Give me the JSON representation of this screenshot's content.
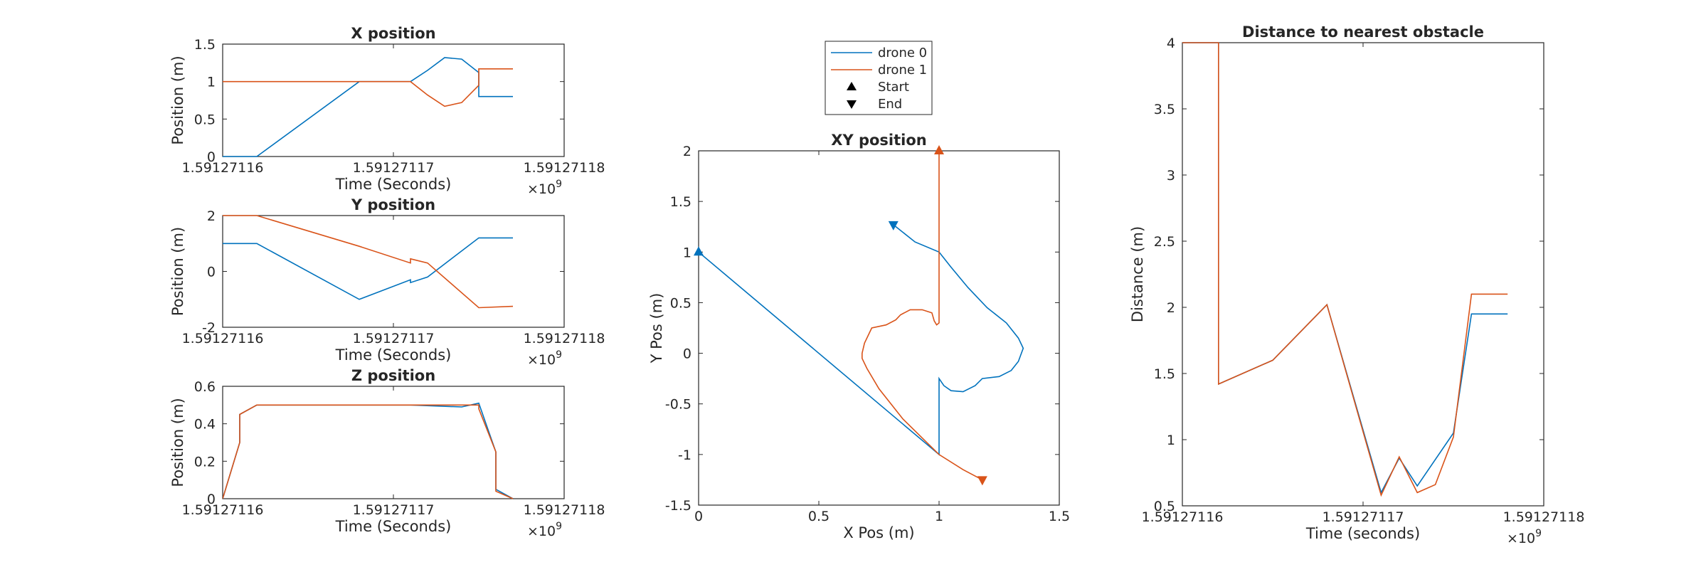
{
  "colors": {
    "drone0": "#0072BD",
    "drone1": "#D95319",
    "axis": "#262626"
  },
  "chart_data": [
    {
      "id": "x_position",
      "type": "line",
      "title": "X position",
      "xlabel": "Time (Seconds)",
      "ylabel": "Position (m)",
      "x_exponent_label": "×10",
      "x_exponent_power": "9",
      "xlim": [
        1.59127116,
        1.59127118
      ],
      "ylim": [
        0,
        1.5
      ],
      "xticks": [
        "1.59127116",
        "1.59127117",
        "1.59127118"
      ],
      "yticks": [
        "0",
        "0.5",
        "1",
        "1.5"
      ],
      "grid": false,
      "series": [
        {
          "name": "drone 0",
          "color": "#0072BD",
          "points": [
            [
              1.59127116,
              0
            ],
            [
              1.591271162,
              0
            ],
            [
              1.591271168,
              1
            ],
            [
              1.591271171,
              1
            ],
            [
              1.591271172,
              1.15
            ],
            [
              1.591271173,
              1.32
            ],
            [
              1.591271174,
              1.3
            ],
            [
              1.591271175,
              1.12
            ],
            [
              1.591271175,
              0.8
            ],
            [
              1.591271177,
              0.8
            ]
          ]
        },
        {
          "name": "drone 1",
          "color": "#D95319",
          "points": [
            [
              1.59127116,
              1
            ],
            [
              1.591271171,
              1
            ],
            [
              1.591271172,
              0.82
            ],
            [
              1.591271173,
              0.67
            ],
            [
              1.591271174,
              0.72
            ],
            [
              1.591271175,
              0.95
            ],
            [
              1.591271175,
              1.17
            ],
            [
              1.591271177,
              1.17
            ]
          ]
        }
      ]
    },
    {
      "id": "y_position",
      "type": "line",
      "title": "Y position",
      "xlabel": "Time (Seconds)",
      "ylabel": "Position (m)",
      "x_exponent_label": "×10",
      "x_exponent_power": "9",
      "xlim": [
        1.59127116,
        1.59127118
      ],
      "ylim": [
        -2,
        2
      ],
      "xticks": [
        "1.59127116",
        "1.59127117",
        "1.59127118"
      ],
      "yticks": [
        "-2",
        "0",
        "2"
      ],
      "grid": false,
      "series": [
        {
          "name": "drone 0",
          "color": "#0072BD",
          "points": [
            [
              1.59127116,
              1
            ],
            [
              1.591271162,
              1
            ],
            [
              1.591271168,
              -1
            ],
            [
              1.591271171,
              -0.3
            ],
            [
              1.591271171,
              -0.4
            ],
            [
              1.591271172,
              -0.2
            ],
            [
              1.591271175,
              1.2
            ],
            [
              1.591271177,
              1.2
            ]
          ]
        },
        {
          "name": "drone 1",
          "color": "#D95319",
          "points": [
            [
              1.59127116,
              2
            ],
            [
              1.591271162,
              2
            ],
            [
              1.591271168,
              0.9
            ],
            [
              1.591271171,
              0.3
            ],
            [
              1.591271171,
              0.45
            ],
            [
              1.591271172,
              0.3
            ],
            [
              1.591271175,
              -1.3
            ],
            [
              1.591271177,
              -1.25
            ]
          ]
        }
      ]
    },
    {
      "id": "z_position",
      "type": "line",
      "title": "Z position",
      "xlabel": "Time (Seconds)",
      "ylabel": "Position (m)",
      "x_exponent_label": "×10",
      "x_exponent_power": "9",
      "xlim": [
        1.59127116,
        1.59127118
      ],
      "ylim": [
        0,
        0.6
      ],
      "xticks": [
        "1.59127116",
        "1.59127117",
        "1.59127118"
      ],
      "yticks": [
        "0",
        "0.2",
        "0.4",
        "0.6"
      ],
      "grid": false,
      "series": [
        {
          "name": "drone 0",
          "color": "#0072BD",
          "points": [
            [
              1.59127116,
              0
            ],
            [
              1.591271161,
              0.3
            ],
            [
              1.591271161,
              0.45
            ],
            [
              1.591271162,
              0.5
            ],
            [
              1.591271171,
              0.5
            ],
            [
              1.591271174,
              0.49
            ],
            [
              1.591271175,
              0.51
            ],
            [
              1.591271176,
              0.25
            ],
            [
              1.591271176,
              0.05
            ],
            [
              1.591271177,
              0
            ]
          ]
        },
        {
          "name": "drone 1",
          "color": "#D95319",
          "points": [
            [
              1.59127116,
              0
            ],
            [
              1.591271161,
              0.3
            ],
            [
              1.591271161,
              0.45
            ],
            [
              1.591271162,
              0.5
            ],
            [
              1.591271175,
              0.5
            ],
            [
              1.591271175,
              0.48
            ],
            [
              1.591271176,
              0.25
            ],
            [
              1.591271176,
              0.04
            ],
            [
              1.591271177,
              0
            ]
          ]
        }
      ]
    },
    {
      "id": "xy_position",
      "type": "line",
      "title": "XY position",
      "xlabel": "X Pos (m)",
      "ylabel": "Y Pos (m)",
      "xlim": [
        0,
        1.5
      ],
      "ylim": [
        -1.5,
        2
      ],
      "xticks": [
        "0",
        "0.5",
        "1",
        "1.5"
      ],
      "yticks": [
        "-1.5",
        "-1",
        "-0.5",
        "0",
        "0.5",
        "1",
        "1.5",
        "2"
      ],
      "grid": false,
      "legend": {
        "placement": "top-center, outside",
        "entries": [
          {
            "label": "drone 0",
            "kind": "line",
            "color": "#0072BD"
          },
          {
            "label": "drone 1",
            "kind": "line",
            "color": "#D95319"
          },
          {
            "label": "Start",
            "kind": "marker-up",
            "color": "#000000"
          },
          {
            "label": "End",
            "kind": "marker-down",
            "color": "#000000"
          }
        ]
      },
      "series": [
        {
          "name": "drone 0",
          "color": "#0072BD",
          "start": [
            0,
            1
          ],
          "end": [
            0.81,
            1.27
          ],
          "points": [
            [
              0,
              1
            ],
            [
              1,
              -1
            ],
            [
              1,
              -0.25
            ],
            [
              1.02,
              -0.32
            ],
            [
              1.05,
              -0.37
            ],
            [
              1.1,
              -0.38
            ],
            [
              1.15,
              -0.32
            ],
            [
              1.18,
              -0.25
            ],
            [
              1.25,
              -0.23
            ],
            [
              1.3,
              -0.17
            ],
            [
              1.33,
              -0.08
            ],
            [
              1.35,
              0.05
            ],
            [
              1.33,
              0.15
            ],
            [
              1.28,
              0.3
            ],
            [
              1.2,
              0.45
            ],
            [
              1.12,
              0.65
            ],
            [
              1.05,
              0.85
            ],
            [
              1,
              1
            ],
            [
              0.9,
              1.1
            ],
            [
              0.81,
              1.27
            ]
          ]
        },
        {
          "name": "drone 1",
          "color": "#D95319",
          "start": [
            1,
            2
          ],
          "end": [
            1.18,
            -1.25
          ],
          "points": [
            [
              1,
              2
            ],
            [
              1,
              0.3
            ],
            [
              0.99,
              0.28
            ],
            [
              0.98,
              0.32
            ],
            [
              0.97,
              0.4
            ],
            [
              0.93,
              0.43
            ],
            [
              0.88,
              0.43
            ],
            [
              0.84,
              0.38
            ],
            [
              0.82,
              0.33
            ],
            [
              0.78,
              0.28
            ],
            [
              0.72,
              0.25
            ],
            [
              0.69,
              0.1
            ],
            [
              0.68,
              0
            ],
            [
              0.68,
              -0.05
            ],
            [
              0.7,
              -0.15
            ],
            [
              0.75,
              -0.35
            ],
            [
              0.85,
              -0.65
            ],
            [
              1,
              -1
            ],
            [
              1.1,
              -1.15
            ],
            [
              1.18,
              -1.25
            ]
          ]
        }
      ]
    },
    {
      "id": "distance_to_nearest_obstacle",
      "type": "line",
      "title": "Distance to nearest obstacle",
      "xlabel": "Time (seconds)",
      "ylabel": "Distance (m)",
      "x_exponent_label": "×10",
      "x_exponent_power": "9",
      "xlim": [
        1.59127116,
        1.59127118
      ],
      "ylim": [
        0.5,
        4
      ],
      "xticks": [
        "1.59127116",
        "1.59127117",
        "1.59127118"
      ],
      "yticks": [
        "0.5",
        "1",
        "1.5",
        "2",
        "2.5",
        "3",
        "3.5",
        "4"
      ],
      "grid": false,
      "series": [
        {
          "name": "drone 0",
          "color": "#0072BD",
          "points": [
            [
              1.59127116,
              4
            ],
            [
              1.591271162,
              4
            ],
            [
              1.591271162,
              1.42
            ],
            [
              1.591271165,
              1.6
            ],
            [
              1.591271168,
              2.02
            ],
            [
              1.591271171,
              0.6
            ],
            [
              1.591271172,
              0.86
            ],
            [
              1.591271173,
              0.65
            ],
            [
              1.591271175,
              1.05
            ],
            [
              1.591271176,
              1.95
            ],
            [
              1.591271178,
              1.95
            ]
          ]
        },
        {
          "name": "drone 1",
          "color": "#D95319",
          "points": [
            [
              1.59127116,
              4
            ],
            [
              1.591271162,
              4
            ],
            [
              1.591271162,
              1.42
            ],
            [
              1.591271165,
              1.6
            ],
            [
              1.591271168,
              2.02
            ],
            [
              1.591271171,
              0.58
            ],
            [
              1.591271172,
              0.87
            ],
            [
              1.591271173,
              0.6
            ],
            [
              1.591271174,
              0.66
            ],
            [
              1.591271175,
              1.02
            ],
            [
              1.591271176,
              2.1
            ],
            [
              1.591271178,
              2.1
            ]
          ]
        }
      ]
    }
  ]
}
